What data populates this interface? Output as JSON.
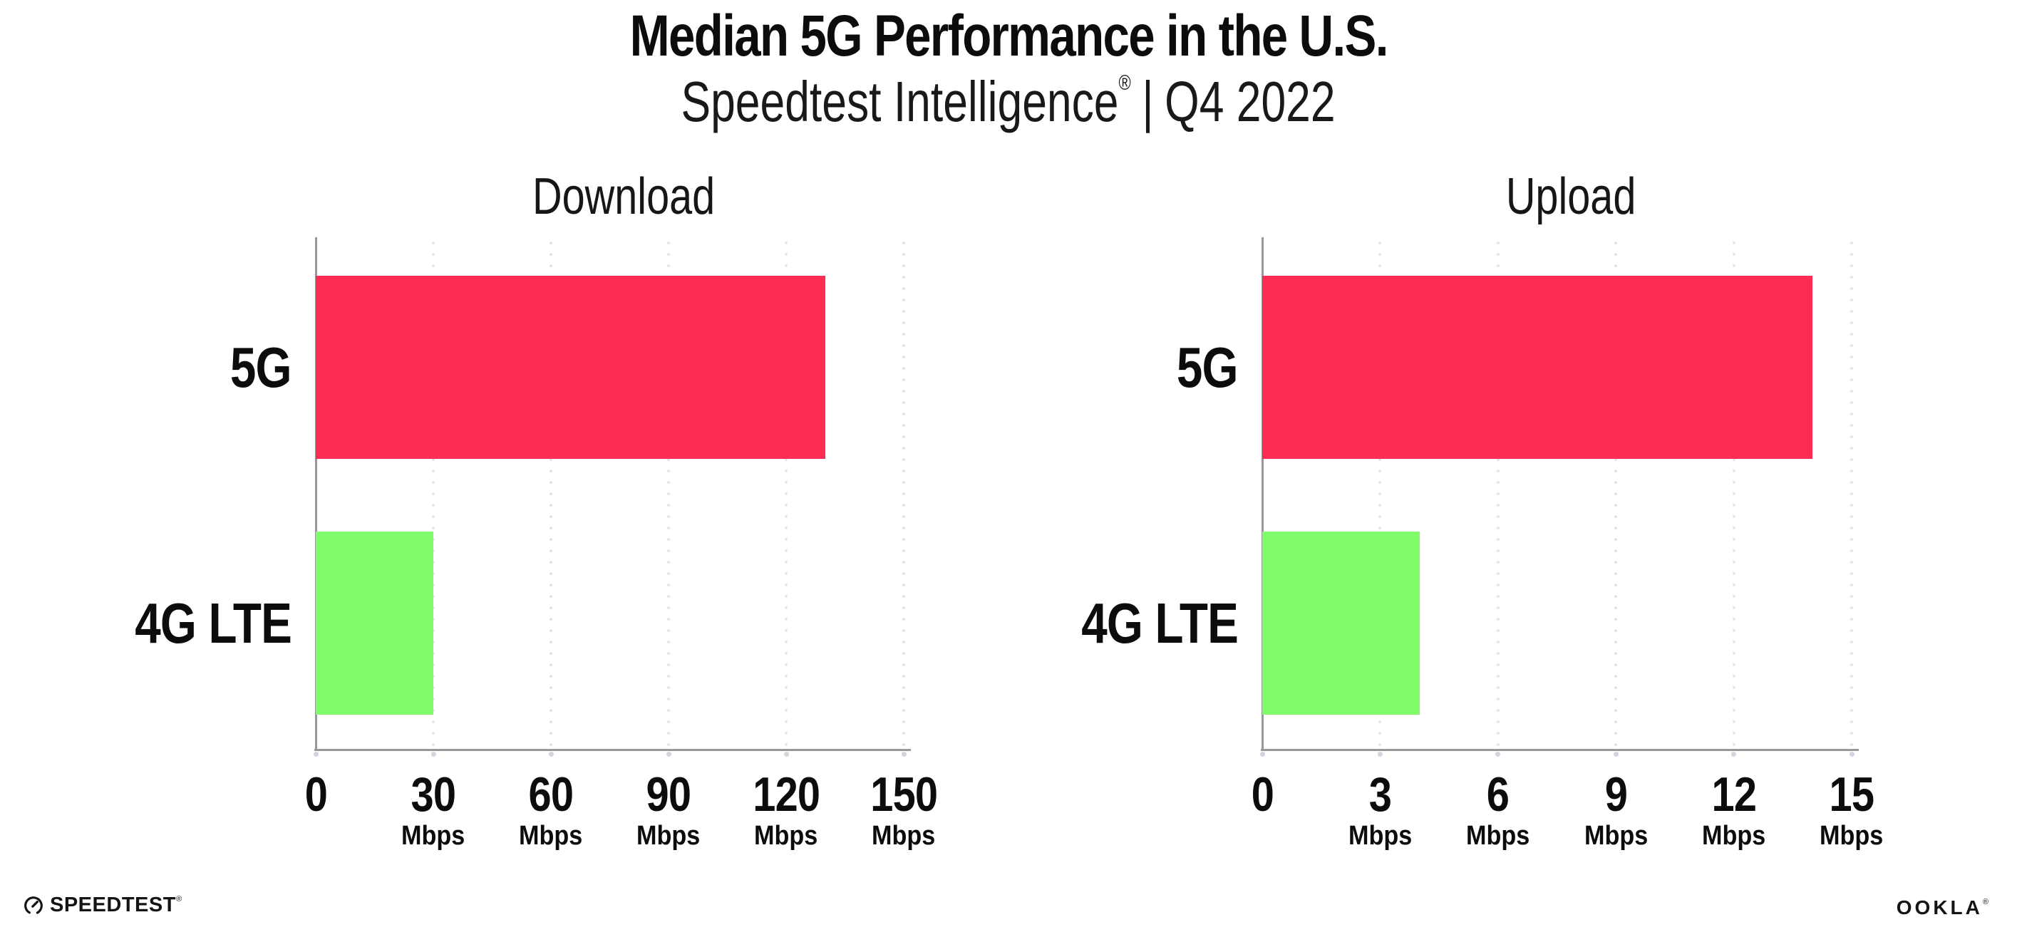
{
  "page": {
    "title": "Median 5G Performance in the U.S.",
    "subtitle": {
      "brand": "Speedtest Intelligence",
      "registered": "®",
      "separator": "|",
      "period": "Q4 2022"
    }
  },
  "chart_data": [
    {
      "type": "bar",
      "orientation": "horizontal",
      "title": "Download",
      "categories": [
        "5G",
        "4G LTE"
      ],
      "values": [
        130,
        30
      ],
      "unit": "Mbps",
      "xlim": [
        0,
        150
      ],
      "xticks": [
        0,
        30,
        60,
        90,
        120,
        150
      ],
      "grid": "vertical dotted",
      "legend": "none",
      "bar_colors": [
        "#fc2d55",
        "#80fb6a"
      ]
    },
    {
      "type": "bar",
      "orientation": "horizontal",
      "title": "Upload",
      "categories": [
        "5G",
        "4G LTE"
      ],
      "values": [
        14,
        4
      ],
      "unit": "Mbps",
      "xlim": [
        0,
        15
      ],
      "xticks": [
        0,
        3,
        6,
        9,
        12,
        15
      ],
      "grid": "vertical dotted",
      "legend": "none",
      "bar_colors": [
        "#fc2d55",
        "#80fb6a"
      ]
    }
  ],
  "footer": {
    "speedtest_icon": "speedtest-gauge-icon",
    "speedtest_wordmark": "SPEEDTEST",
    "speedtest_registered": "®",
    "ookla_wordmark": "OOKLA",
    "ookla_registered": "®"
  },
  "colors": {
    "bar_5g": "#fc2d55",
    "bar_4g_lte": "#80fb6a",
    "axis_line": "#98989c",
    "gridline_dots": "#e2e2ee",
    "tick_dots": "#d4d4e0",
    "text": "#0c0c0c",
    "background": "#ffffff"
  }
}
